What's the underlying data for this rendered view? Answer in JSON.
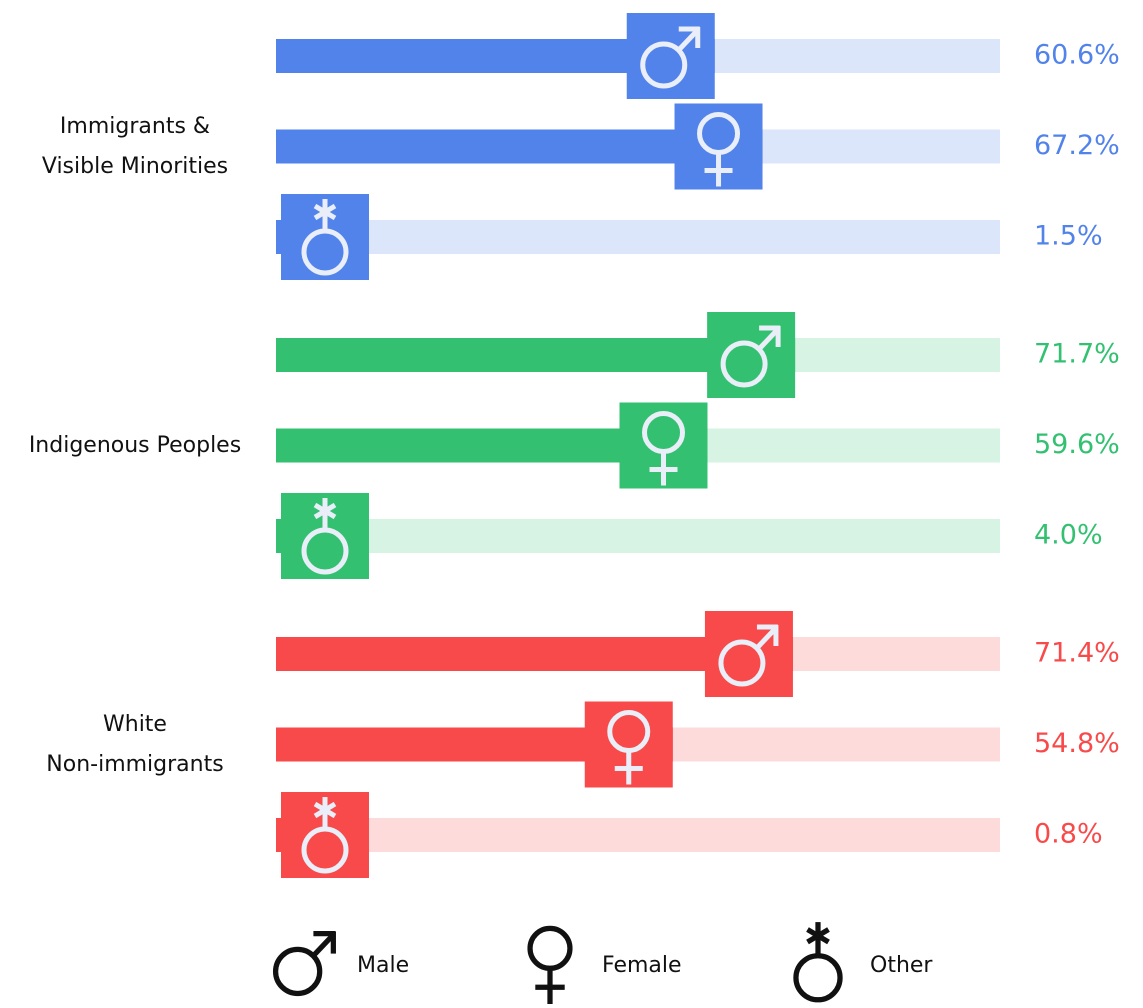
{
  "chart_data": {
    "type": "bar",
    "categories": [
      "Male",
      "Female",
      "Other"
    ],
    "xlim": [
      0,
      100
    ],
    "series": [
      {
        "name": "Immigrants &\nVisible Minorities",
        "color": "#5283ea",
        "values": [
          60.6,
          67.2,
          1.5
        ],
        "value_labels": [
          "60.6%",
          "67.2%",
          "1.5%"
        ]
      },
      {
        "name": "Indigenous Peoples",
        "color": "#33c171",
        "values": [
          71.7,
          59.6,
          4.0
        ],
        "value_labels": [
          "71.7%",
          "59.6%",
          "4.0%"
        ]
      },
      {
        "name": "White\nNon-immigrants",
        "color": "#f84a4a",
        "values": [
          71.4,
          54.8,
          0.8
        ],
        "value_labels": [
          "71.4%",
          "54.8%",
          "0.8%"
        ]
      }
    ]
  }
}
